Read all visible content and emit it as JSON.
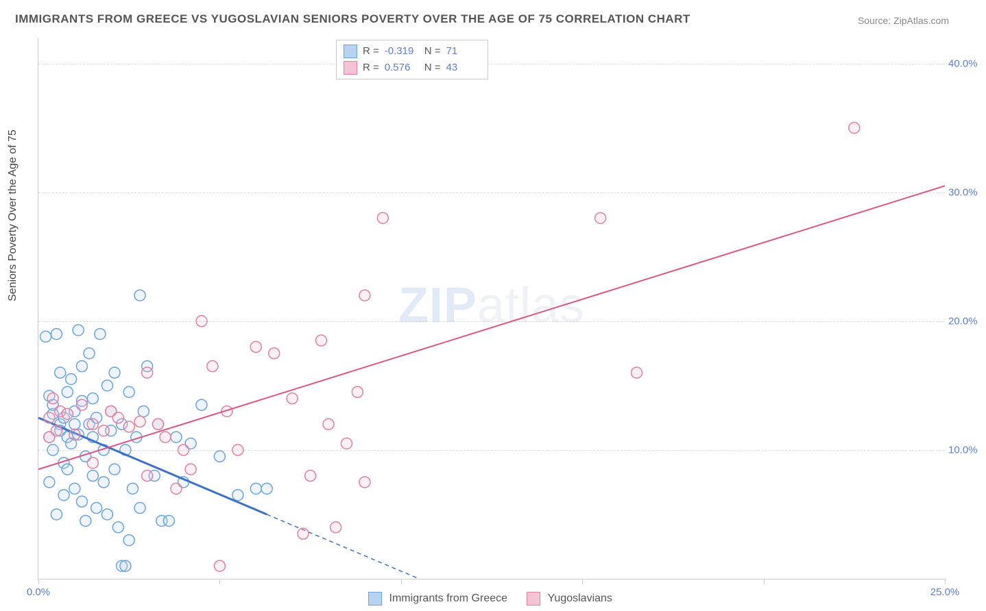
{
  "title": "IMMIGRANTS FROM GREECE VS YUGOSLAVIAN SENIORS POVERTY OVER THE AGE OF 75 CORRELATION CHART",
  "source": "Source: ZipAtlas.com",
  "ylabel": "Seniors Poverty Over the Age of 75",
  "watermark_a": "ZIP",
  "watermark_b": "atlas",
  "chart": {
    "type": "scatter",
    "background_color": "#ffffff",
    "grid_color": "#dddddd",
    "axis_color": "#cccccc",
    "tick_label_color": "#5b7fd1",
    "x_range": [
      0,
      25
    ],
    "y_range": [
      0,
      42
    ],
    "y_ticks": [
      10,
      20,
      30,
      40
    ],
    "y_tick_labels": [
      "10.0%",
      "20.0%",
      "30.0%",
      "40.0%"
    ],
    "x_ticks": [
      0,
      5,
      10,
      15,
      20,
      25
    ],
    "x_tick_labels": [
      "0.0%",
      "",
      "",
      "",
      "",
      "25.0%"
    ],
    "marker_radius": 8,
    "marker_stroke_width": 1.5,
    "marker_fill_opacity": 0.25,
    "series": [
      {
        "name": "Immigrants from Greece",
        "color_stroke": "#6aa3e0",
        "color_fill": "#b7d3f0",
        "swatch_fill": "#b7d3f0",
        "swatch_stroke": "#6aa3e0",
        "r_value": "-0.319",
        "n_value": "71",
        "trend": {
          "x1": 0,
          "y1": 12.5,
          "x2": 6.3,
          "y2": 5.0,
          "solid_until_x": 6.3,
          "dashed_to_x": 10.5,
          "dashed_to_y": 0.0,
          "stroke_width": 3,
          "color": "#3a71c9"
        },
        "points": [
          [
            0.2,
            18.8
          ],
          [
            0.3,
            14.2
          ],
          [
            0.3,
            11.0
          ],
          [
            0.3,
            7.5
          ],
          [
            0.4,
            12.8
          ],
          [
            0.4,
            10.0
          ],
          [
            0.4,
            13.5
          ],
          [
            0.5,
            5.0
          ],
          [
            0.5,
            19.0
          ],
          [
            0.6,
            12.0
          ],
          [
            0.6,
            11.5
          ],
          [
            0.6,
            16.0
          ],
          [
            0.7,
            9.0
          ],
          [
            0.7,
            12.5
          ],
          [
            0.7,
            6.5
          ],
          [
            0.8,
            14.5
          ],
          [
            0.8,
            11.0
          ],
          [
            0.8,
            8.5
          ],
          [
            0.9,
            10.5
          ],
          [
            0.9,
            15.5
          ],
          [
            1.0,
            12.0
          ],
          [
            1.0,
            7.0
          ],
          [
            1.0,
            13.0
          ],
          [
            1.1,
            19.3
          ],
          [
            1.1,
            11.2
          ],
          [
            1.2,
            6.0
          ],
          [
            1.2,
            16.5
          ],
          [
            1.2,
            13.8
          ],
          [
            1.3,
            9.5
          ],
          [
            1.3,
            4.5
          ],
          [
            1.4,
            12.0
          ],
          [
            1.4,
            17.5
          ],
          [
            1.5,
            8.0
          ],
          [
            1.5,
            11.0
          ],
          [
            1.5,
            14.0
          ],
          [
            1.6,
            5.5
          ],
          [
            1.6,
            12.5
          ],
          [
            1.7,
            19.0
          ],
          [
            1.8,
            10.0
          ],
          [
            1.8,
            7.5
          ],
          [
            1.9,
            15.0
          ],
          [
            1.9,
            5.0
          ],
          [
            2.0,
            13.0
          ],
          [
            2.0,
            11.5
          ],
          [
            2.1,
            8.5
          ],
          [
            2.1,
            16.0
          ],
          [
            2.2,
            4.0
          ],
          [
            2.3,
            12.0
          ],
          [
            2.3,
            1.0
          ],
          [
            2.4,
            1.0
          ],
          [
            2.4,
            10.0
          ],
          [
            2.5,
            3.0
          ],
          [
            2.5,
            14.5
          ],
          [
            2.6,
            7.0
          ],
          [
            2.7,
            11.0
          ],
          [
            2.8,
            5.5
          ],
          [
            2.8,
            22.0
          ],
          [
            2.9,
            13.0
          ],
          [
            3.0,
            16.5
          ],
          [
            3.2,
            8.0
          ],
          [
            3.3,
            12.0
          ],
          [
            3.4,
            4.5
          ],
          [
            3.6,
            4.5
          ],
          [
            3.8,
            11.0
          ],
          [
            4.0,
            7.5
          ],
          [
            4.2,
            10.5
          ],
          [
            4.5,
            13.5
          ],
          [
            5.0,
            9.5
          ],
          [
            5.5,
            6.5
          ],
          [
            6.0,
            7.0
          ],
          [
            6.3,
            7.0
          ]
        ]
      },
      {
        "name": "Yugoslavians",
        "color_stroke": "#e37fa0",
        "color_fill": "#f4c4d4",
        "swatch_fill": "#f4c4d4",
        "swatch_stroke": "#e37fa0",
        "r_value": "0.576",
        "n_value": "43",
        "trend": {
          "x1": 0,
          "y1": 8.5,
          "x2": 25,
          "y2": 30.5,
          "solid_until_x": 25,
          "stroke_width": 2,
          "color": "#e0557f"
        },
        "points": [
          [
            0.3,
            11.0
          ],
          [
            0.3,
            12.5
          ],
          [
            0.4,
            14.0
          ],
          [
            0.5,
            11.5
          ],
          [
            0.6,
            13.0
          ],
          [
            0.8,
            12.8
          ],
          [
            1.0,
            11.2
          ],
          [
            1.2,
            13.5
          ],
          [
            1.5,
            12.0
          ],
          [
            1.5,
            9.0
          ],
          [
            1.8,
            11.5
          ],
          [
            2.0,
            13.0
          ],
          [
            2.2,
            12.5
          ],
          [
            2.5,
            11.8
          ],
          [
            2.8,
            12.2
          ],
          [
            3.0,
            8.0
          ],
          [
            3.0,
            16.0
          ],
          [
            3.3,
            12.0
          ],
          [
            3.5,
            11.0
          ],
          [
            3.8,
            7.0
          ],
          [
            4.0,
            10.0
          ],
          [
            4.2,
            8.5
          ],
          [
            4.5,
            20.0
          ],
          [
            4.8,
            16.5
          ],
          [
            5.0,
            1.0
          ],
          [
            5.2,
            13.0
          ],
          [
            5.5,
            10.0
          ],
          [
            6.0,
            18.0
          ],
          [
            6.5,
            17.5
          ],
          [
            7.0,
            14.0
          ],
          [
            7.3,
            3.5
          ],
          [
            7.5,
            8.0
          ],
          [
            7.8,
            18.5
          ],
          [
            8.0,
            12.0
          ],
          [
            8.2,
            4.0
          ],
          [
            8.5,
            10.5
          ],
          [
            8.8,
            14.5
          ],
          [
            9.0,
            22.0
          ],
          [
            9.0,
            7.5
          ],
          [
            9.5,
            28.0
          ],
          [
            15.5,
            28.0
          ],
          [
            16.5,
            16.0
          ],
          [
            22.5,
            35.0
          ]
        ]
      }
    ]
  },
  "stat_legend_labels": {
    "r": "R =",
    "n": "N ="
  },
  "bottom_legend": [
    "Immigrants from Greece",
    "Yugoslavians"
  ]
}
